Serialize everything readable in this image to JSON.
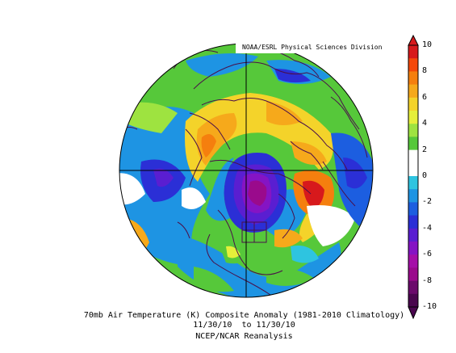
{
  "credit": "NOAA/ESRL Physical Sciences Division",
  "caption": {
    "line1": "70mb Air Temperature (K) Composite Anomaly (1981-2010 Climatology)",
    "line2": "11/30/10  to 11/30/10",
    "line3": "NCEP/NCAR Reanalysis"
  },
  "colorbar": {
    "ticks": [
      "10",
      "8",
      "6",
      "4",
      "2",
      "0",
      "-2",
      "-4",
      "-6",
      "-8",
      "-10"
    ],
    "colors": [
      "#d7191c",
      "#f4480a",
      "#f57f0e",
      "#f6a91b",
      "#f4d32a",
      "#e6ef3a",
      "#9ee340",
      "#56c83a",
      "#ffffff",
      "#ffffff",
      "#2ec4e0",
      "#1e94e3",
      "#1c5ee0",
      "#2b2fd6",
      "#5a1ed1",
      "#8514c4",
      "#a50fa8",
      "#9a0a8c",
      "#6b0a6b",
      "#4a064e"
    ]
  },
  "colors": {
    "coast": "#4a0f4a",
    "grid": "#000000"
  }
}
